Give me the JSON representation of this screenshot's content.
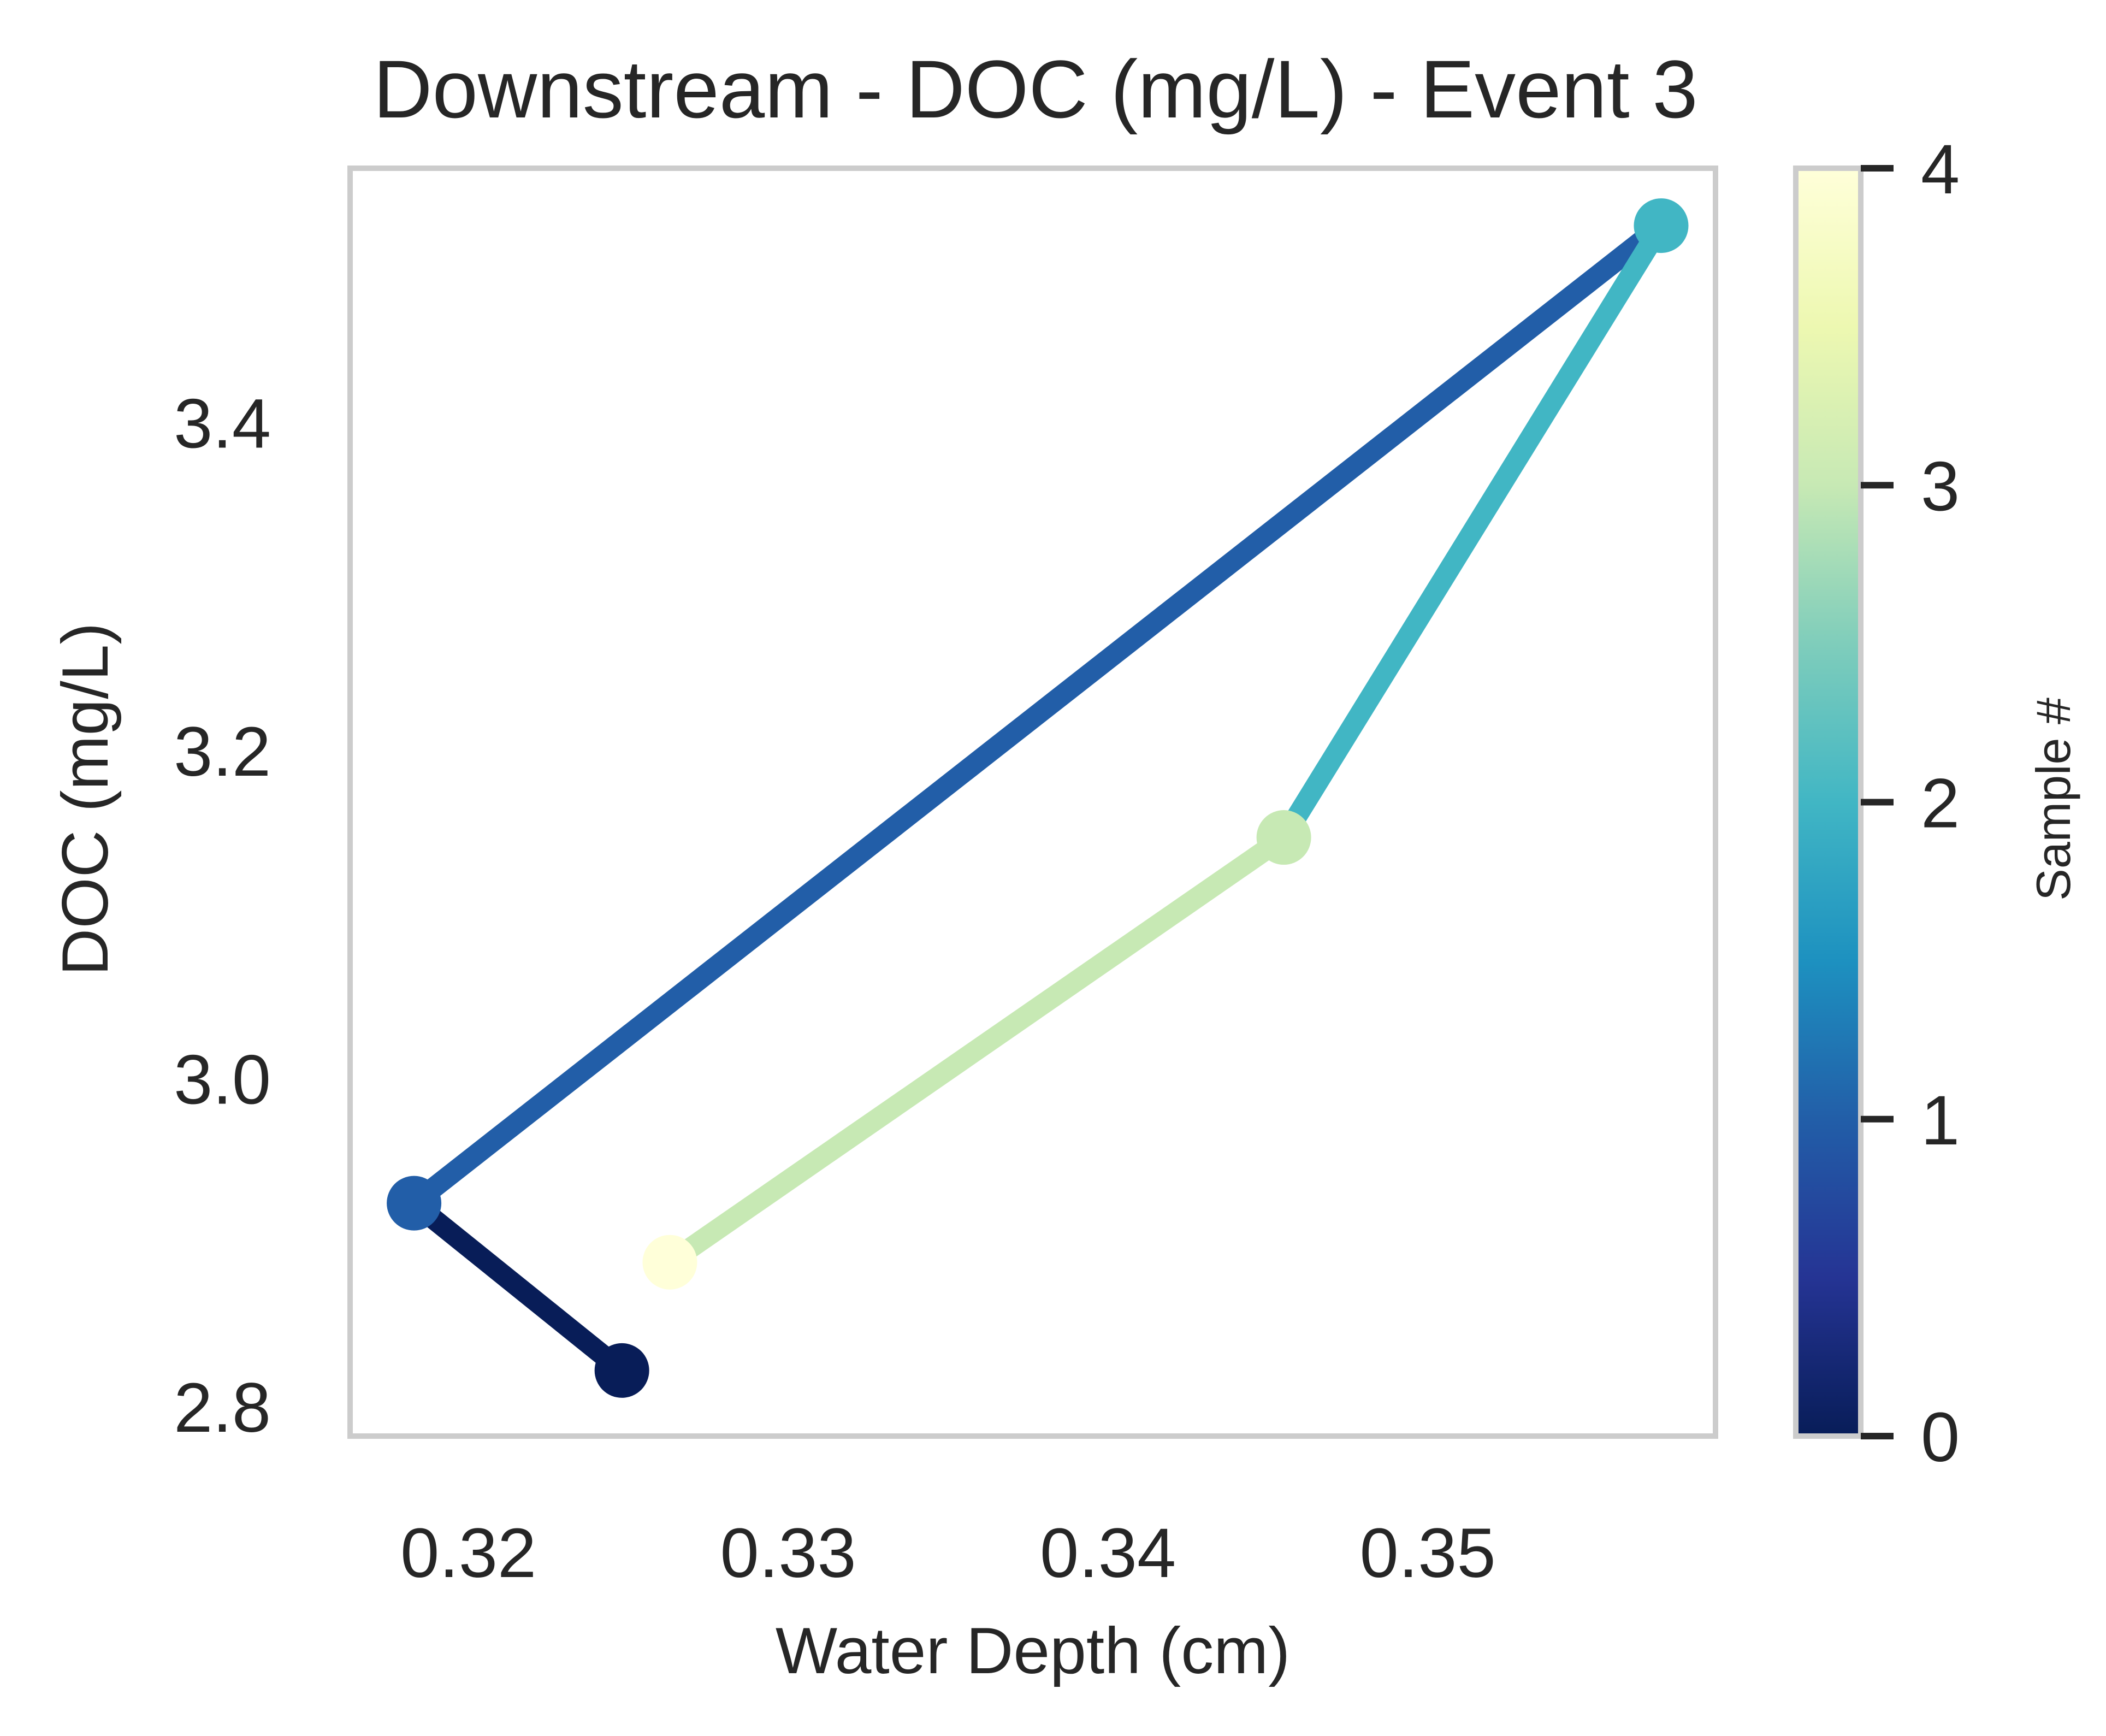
{
  "chart_data": {
    "type": "line",
    "title": "Downstream - DOC (mg/L) - Event 3",
    "xlabel": "Water Depth (cm)",
    "ylabel": "DOC (mg/L)",
    "xlim": [
      0.3163,
      0.359
    ],
    "ylim": [
      2.782,
      3.555
    ],
    "xticks": [
      0.32,
      0.33,
      0.34,
      0.35
    ],
    "xtick_labels": [
      "0.32",
      "0.33",
      "0.34",
      "0.35"
    ],
    "yticks": [
      2.8,
      3.0,
      3.2,
      3.4
    ],
    "ytick_labels": [
      "2.8",
      "3.0",
      "3.2",
      "3.4"
    ],
    "grid": false,
    "points": [
      {
        "sample": 0,
        "x": 0.3248,
        "y": 2.822,
        "color": "#081d58"
      },
      {
        "sample": 1,
        "x": 0.3183,
        "y": 2.924,
        "color": "#225ea8"
      },
      {
        "sample": 2,
        "x": 0.3573,
        "y": 3.52,
        "color": "#41b6c4"
      },
      {
        "sample": 3,
        "x": 0.3455,
        "y": 3.147,
        "color": "#c7e9b4"
      },
      {
        "sample": 4,
        "x": 0.3263,
        "y": 2.888,
        "color": "#ffffd9"
      }
    ],
    "colorbar": {
      "label": "Sample #",
      "colormap": "YlGnBu_r",
      "range": [
        0,
        4
      ],
      "ticks": [
        0,
        1,
        2,
        3,
        4
      ],
      "tick_labels": [
        "0",
        "1",
        "2",
        "3",
        "4"
      ],
      "stops": [
        "#081d58",
        "#253494",
        "#225ea8",
        "#1d91c0",
        "#41b6c4",
        "#7fcdbb",
        "#c7e9b4",
        "#edf8b1",
        "#ffffd9"
      ]
    }
  }
}
